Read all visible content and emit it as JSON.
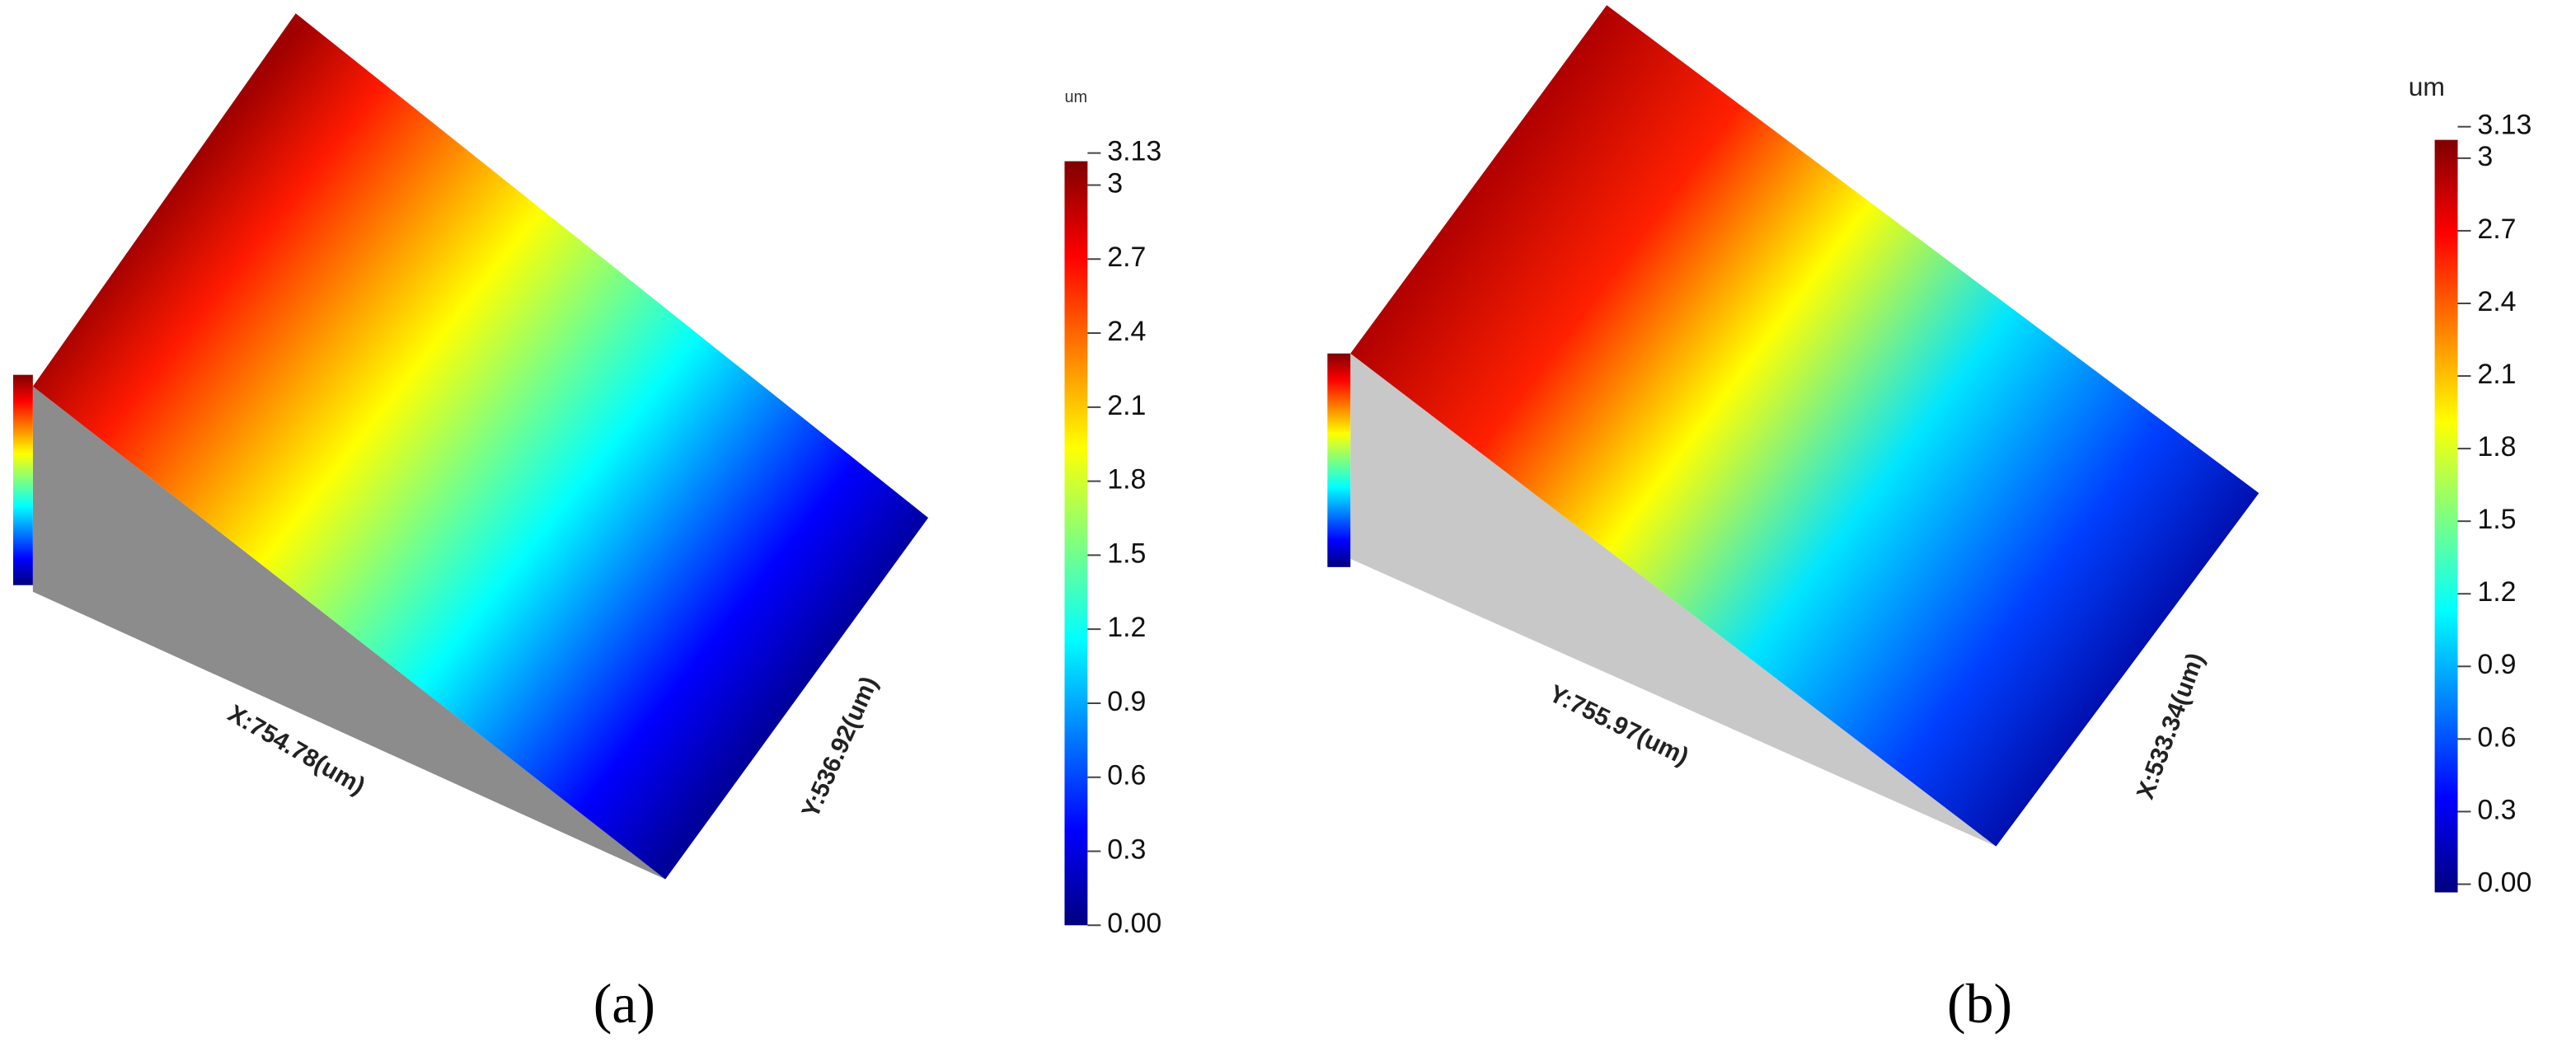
{
  "panels": [
    {
      "label": "(a)",
      "x_axis_label": "X:754.78(um)",
      "y_axis_label": "Y:536.92(um)",
      "colorbar": {
        "unit": "um",
        "ticks": [
          {
            "value": 0,
            "label": "0.00"
          },
          0.3,
          0.6,
          0.9,
          1.2,
          1.5,
          1.8,
          2.1,
          2.4,
          2.7,
          3,
          3.13
        ]
      }
    },
    {
      "label": "(b)",
      "x_axis_label": "Y:755.97(um)",
      "y_axis_label": "X:533.34(um)",
      "colorbar": {
        "unit": "um",
        "ticks": [
          {
            "value": 0,
            "label": "0.00"
          },
          0.3,
          0.6,
          0.9,
          1.2,
          1.5,
          1.8,
          2.1,
          2.4,
          2.7,
          3,
          3.13
        ]
      }
    }
  ]
}
